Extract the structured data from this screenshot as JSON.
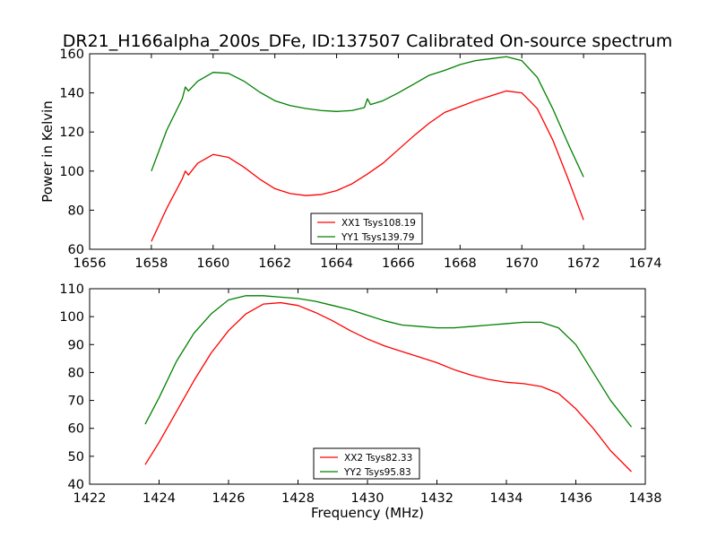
{
  "title": "DR21_H166alpha_200s_DFe, ID:137507 Calibrated On-source spectrum",
  "chart_data": [
    {
      "type": "line",
      "xlabel": "",
      "ylabel": "Power in Kelvin",
      "xlim": [
        1656,
        1674
      ],
      "ylim": [
        60,
        160
      ],
      "xticks": [
        "1656",
        "1658",
        "1660",
        "1662",
        "1664",
        "1666",
        "1668",
        "1670",
        "1672",
        "1674"
      ],
      "yticks": [
        "60",
        "80",
        "100",
        "120",
        "140",
        "160"
      ],
      "legend_position": "bottom-center",
      "series": [
        {
          "name": "XX1 Tsys108.19",
          "color": "#ff0000",
          "x": [
            1658.0,
            1658.5,
            1659.0,
            1659.1,
            1659.2,
            1659.5,
            1660.0,
            1660.5,
            1661.0,
            1661.5,
            1662.0,
            1662.5,
            1663.0,
            1663.5,
            1664.0,
            1664.5,
            1665.0,
            1665.5,
            1666.0,
            1666.5,
            1667.0,
            1667.5,
            1668.0,
            1668.5,
            1669.0,
            1669.5,
            1670.0,
            1670.5,
            1671.0,
            1671.5,
            1672.0
          ],
          "y": [
            64,
            81,
            96,
            100,
            98,
            104,
            108.5,
            107,
            102,
            96,
            91,
            88.5,
            87.5,
            88,
            90,
            93.5,
            98.5,
            104,
            111,
            118,
            124.5,
            130,
            133,
            136,
            138.5,
            141,
            140,
            132,
            116,
            96,
            75
          ]
        },
        {
          "name": "YY1 Tsys139.79",
          "color": "#008000",
          "x": [
            1658.0,
            1658.5,
            1659.0,
            1659.1,
            1659.2,
            1659.5,
            1660.0,
            1660.5,
            1661.0,
            1661.5,
            1662.0,
            1662.5,
            1663.0,
            1663.5,
            1664.0,
            1664.5,
            1664.9,
            1665.0,
            1665.1,
            1665.5,
            1666.0,
            1666.5,
            1667.0,
            1667.5,
            1668.0,
            1668.5,
            1669.0,
            1669.5,
            1670.0,
            1670.5,
            1671.0,
            1671.5,
            1672.0
          ],
          "y": [
            100,
            121,
            137,
            143,
            141,
            146,
            150.5,
            150,
            146,
            140.5,
            136,
            133.5,
            132,
            131,
            130.5,
            131,
            132.5,
            137,
            134,
            136,
            140,
            144.5,
            149,
            151.5,
            154.5,
            156.5,
            157.5,
            158.5,
            156.5,
            148,
            132,
            114,
            97
          ]
        }
      ]
    },
    {
      "type": "line",
      "xlabel": "Frequency (MHz)",
      "ylabel": "",
      "xlim": [
        1422,
        1438
      ],
      "ylim": [
        40,
        110
      ],
      "xticks": [
        "1422",
        "1424",
        "1426",
        "1428",
        "1430",
        "1432",
        "1434",
        "1436",
        "1438"
      ],
      "yticks": [
        "40",
        "50",
        "60",
        "70",
        "80",
        "90",
        "100",
        "110"
      ],
      "legend_position": "bottom-center",
      "series": [
        {
          "name": "XX2 Tsys82.33",
          "color": "#ff0000",
          "x": [
            1423.6,
            1424.0,
            1424.5,
            1425.0,
            1425.5,
            1426.0,
            1426.5,
            1427.0,
            1427.5,
            1428.0,
            1428.5,
            1429.0,
            1429.5,
            1430.0,
            1430.5,
            1431.0,
            1431.5,
            1432.0,
            1432.5,
            1433.0,
            1433.5,
            1434.0,
            1434.5,
            1435.0,
            1435.5,
            1436.0,
            1436.5,
            1437.0,
            1437.6
          ],
          "y": [
            47,
            55,
            66,
            77,
            87,
            95,
            101,
            104.5,
            105,
            104,
            101.5,
            98.5,
            95,
            92,
            89.5,
            87.5,
            85.5,
            83.5,
            81,
            79,
            77.5,
            76.5,
            76,
            75,
            72.5,
            67,
            60,
            52,
            44.5
          ]
        },
        {
          "name": "YY2 Tsys95.83",
          "color": "#008000",
          "x": [
            1423.6,
            1424.0,
            1424.5,
            1425.0,
            1425.5,
            1426.0,
            1426.5,
            1427.0,
            1427.5,
            1428.0,
            1428.5,
            1429.0,
            1429.5,
            1430.0,
            1430.5,
            1431.0,
            1431.5,
            1432.0,
            1432.5,
            1433.0,
            1433.5,
            1434.0,
            1434.5,
            1435.0,
            1435.5,
            1436.0,
            1436.5,
            1437.0,
            1437.6
          ],
          "y": [
            61.5,
            71,
            84,
            94,
            101,
            106,
            107.5,
            107.5,
            107,
            106.5,
            105.5,
            104,
            102.5,
            100.5,
            98.5,
            97,
            96.5,
            96,
            96,
            96.5,
            97,
            97.5,
            98,
            98,
            96,
            90,
            80,
            70,
            60.5
          ]
        }
      ]
    }
  ]
}
